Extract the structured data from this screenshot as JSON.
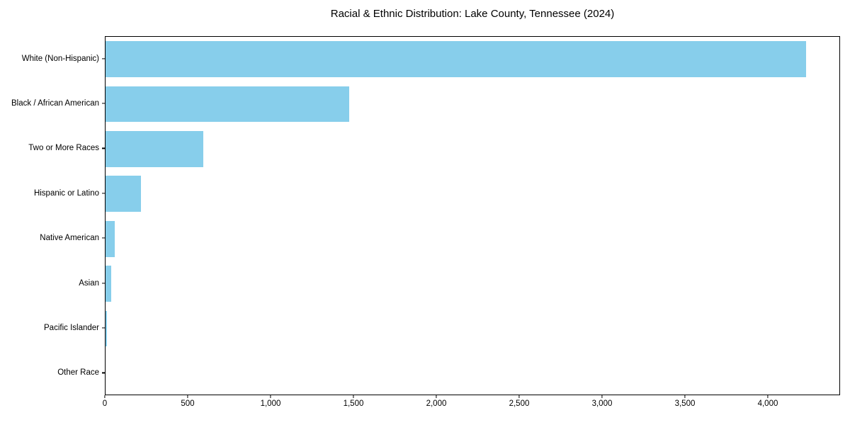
{
  "title": "Racial & Ethnic Distribution: Lake County, Tennessee (2024)",
  "chart_data": {
    "type": "bar",
    "orientation": "horizontal",
    "title": "Racial & Ethnic Distribution: Lake County, Tennessee (2024)",
    "categories": [
      "White (Non-Hispanic)",
      "Black / African American",
      "Two or More Races",
      "Hispanic or Latino",
      "Native American",
      "Asian",
      "Pacific Islander",
      "Other Race"
    ],
    "values": [
      4225,
      1470,
      590,
      212,
      55,
      34,
      8,
      0
    ],
    "xlabel": "",
    "ylabel": "",
    "xlim": [
      0,
      4436
    ],
    "xticks": [
      0,
      500,
      1000,
      1500,
      2000,
      2500,
      3000,
      3500,
      4000
    ],
    "xtick_labels": [
      "0",
      "500",
      "1,000",
      "1,500",
      "2,000",
      "2,500",
      "3,000",
      "3,500",
      "4,000"
    ],
    "bar_color": "#87CEEB",
    "bar_height_fraction": 0.8,
    "grid": false,
    "legend_position": "none",
    "background_color": "#ffffff",
    "text_color": "#000000"
  }
}
